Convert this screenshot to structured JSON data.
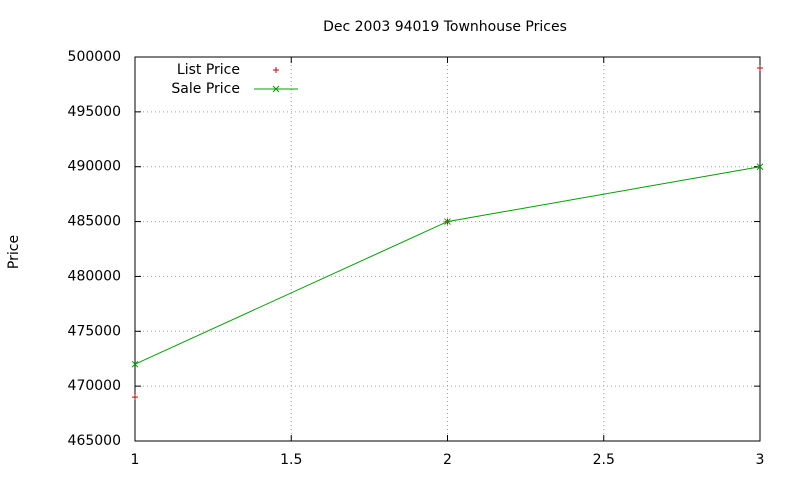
{
  "chart_data": {
    "type": "line",
    "title": "Dec 2003 94019 Townhouse Prices",
    "y_label": "Price",
    "x": [
      1,
      2,
      3
    ],
    "series": [
      {
        "name": "List Price",
        "color": "#cc0000",
        "style": "points",
        "values": [
          469000,
          485000,
          499000
        ]
      },
      {
        "name": "Sale Price",
        "color": "#00a000",
        "style": "linespoints",
        "values": [
          472000,
          485000,
          490000
        ]
      }
    ],
    "xlim": [
      1,
      3
    ],
    "xticks": [
      1,
      1.5,
      2,
      2.5,
      3
    ],
    "ylim": [
      465000,
      500000
    ],
    "yticks": [
      465000,
      470000,
      475000,
      480000,
      485000,
      490000,
      495000,
      500000
    ],
    "grid": true,
    "legend": "top-left"
  }
}
